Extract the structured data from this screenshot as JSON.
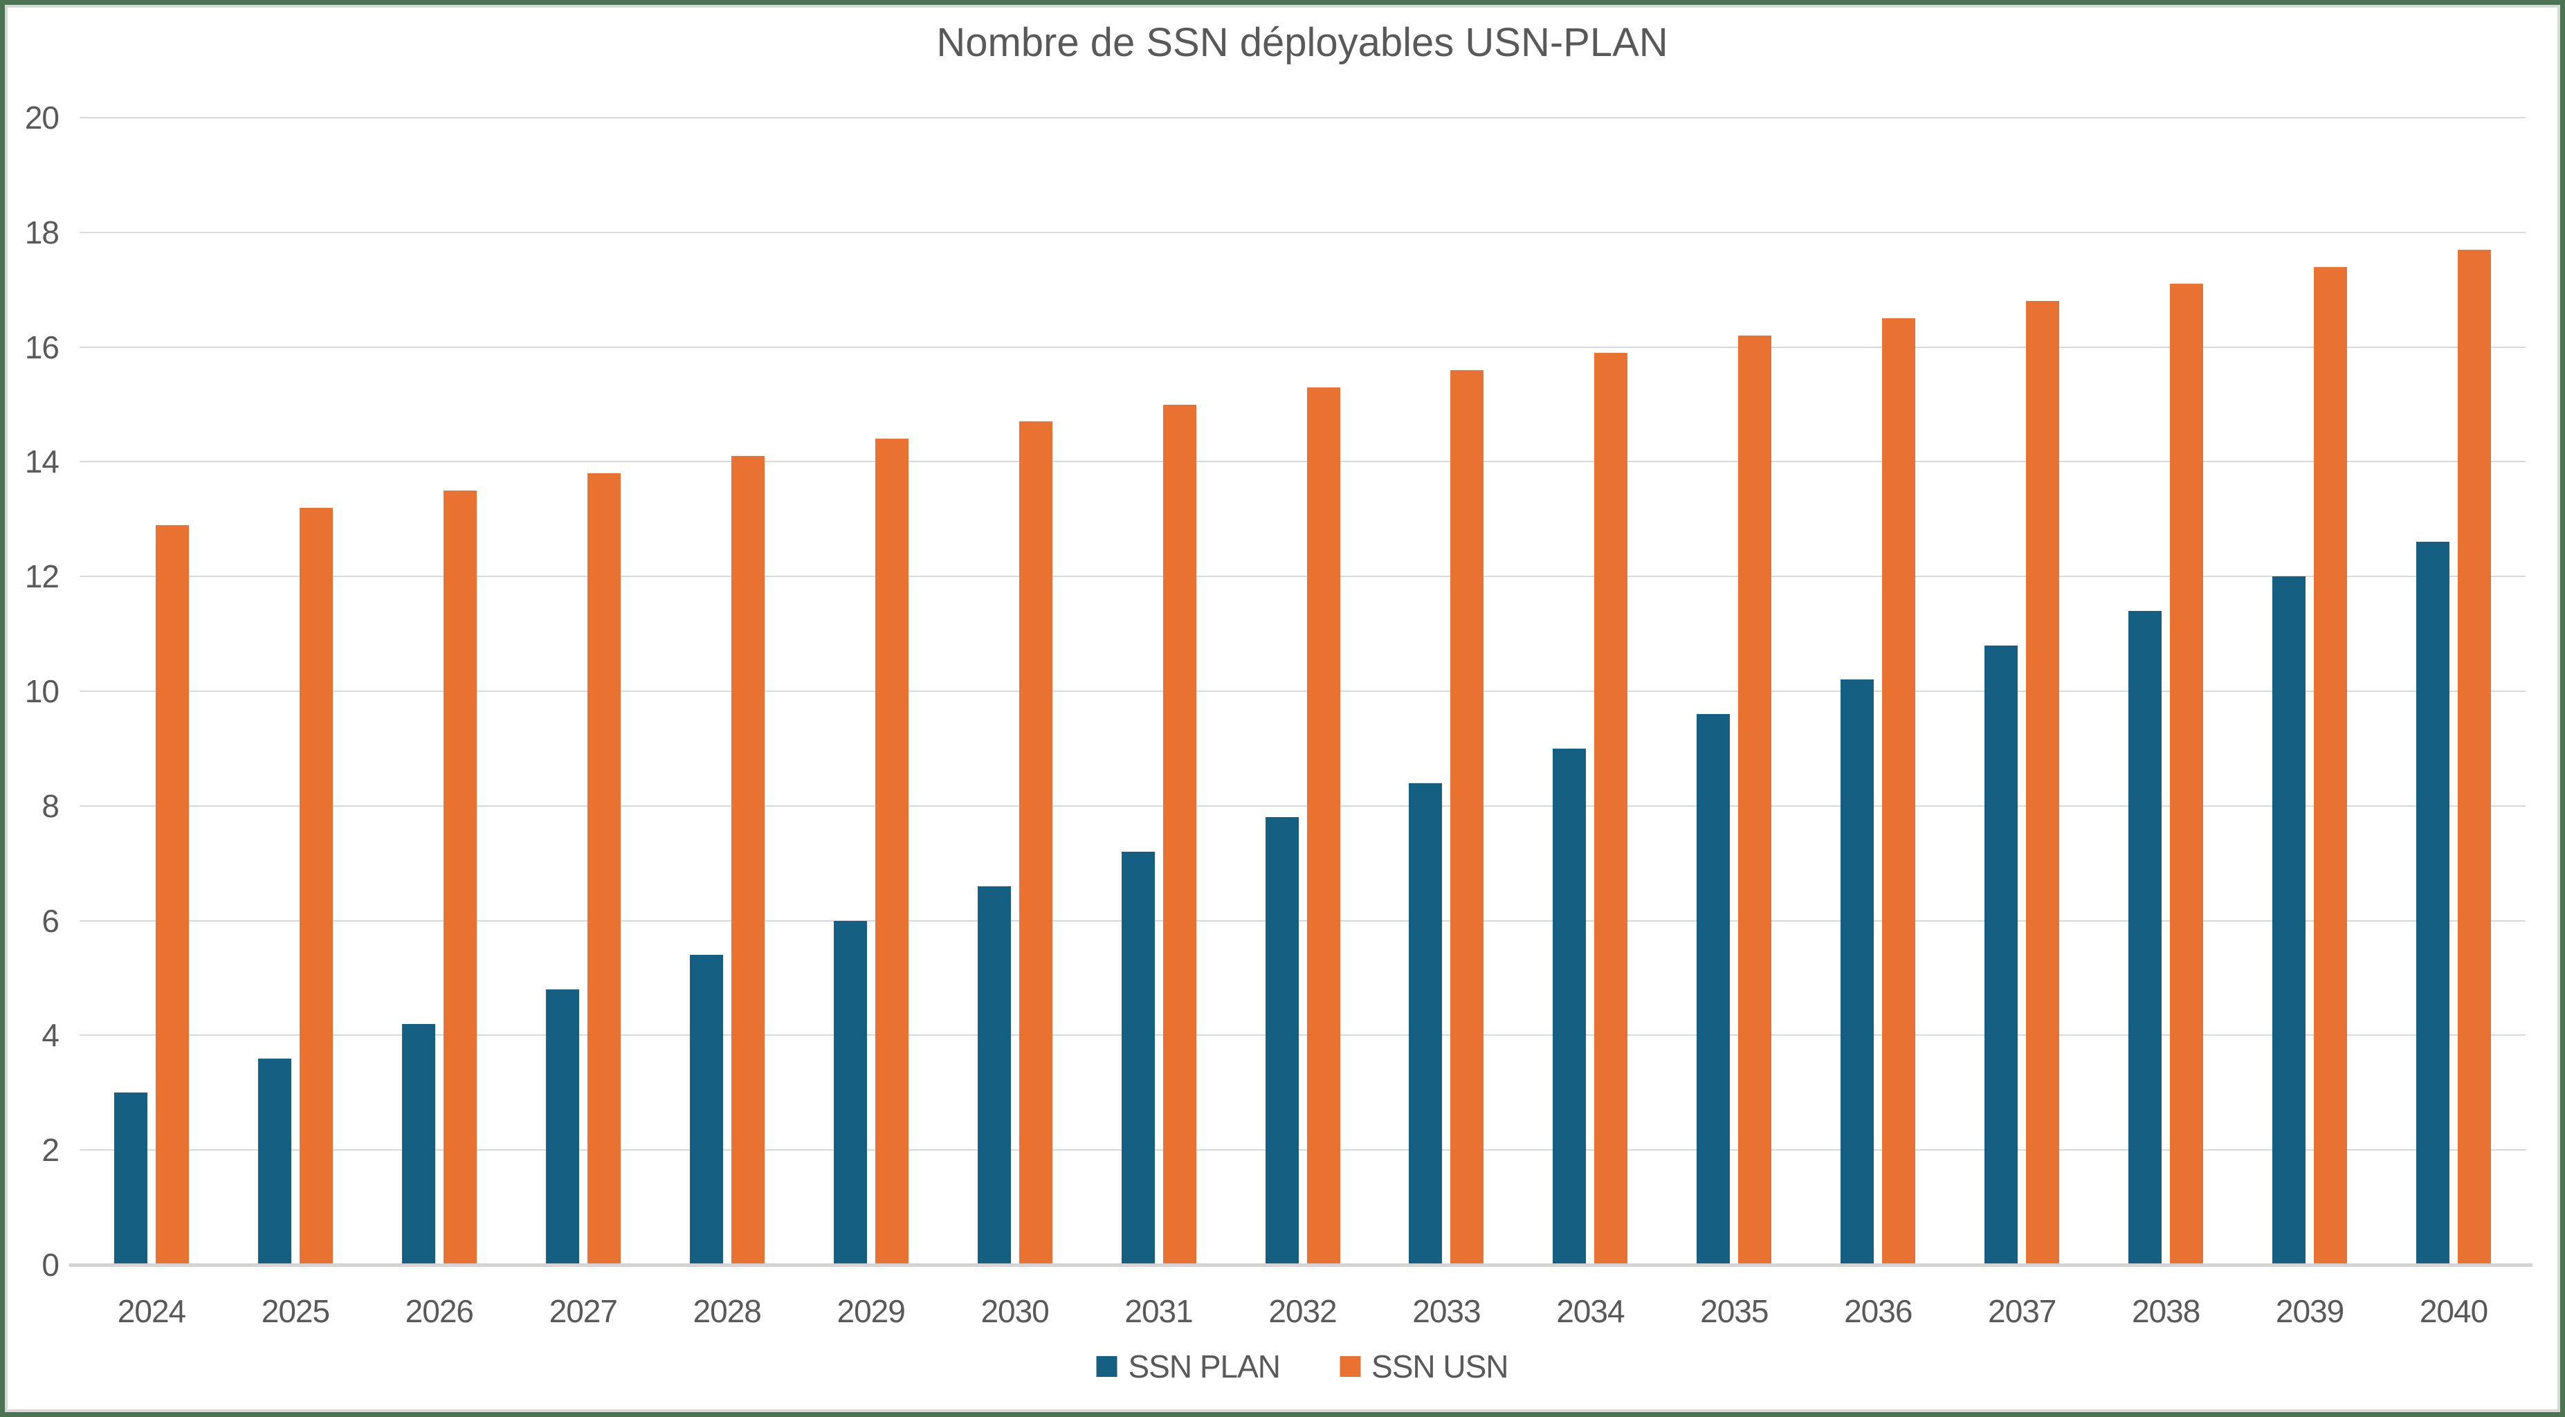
{
  "frame": {
    "outer_border_color": "#4C7354",
    "inner_border_color": "#D8D8D8",
    "background": "#FFFFFF"
  },
  "chart_data": {
    "type": "bar",
    "title": "Nombre de SSN déployables USN-PLAN",
    "xlabel": "",
    "ylabel": "",
    "categories": [
      "2024",
      "2025",
      "2026",
      "2027",
      "2028",
      "2029",
      "2030",
      "2031",
      "2032",
      "2033",
      "2034",
      "2035",
      "2036",
      "2037",
      "2038",
      "2039",
      "2040"
    ],
    "series": [
      {
        "name": "SSN PLAN",
        "color": "#156082",
        "values": [
          3.0,
          3.6,
          4.2,
          4.8,
          5.4,
          6.0,
          6.6,
          7.2,
          7.8,
          8.4,
          9.0,
          9.6,
          10.2,
          10.8,
          11.4,
          12.0,
          12.6
        ]
      },
      {
        "name": "SSN USN",
        "color": "#E97132",
        "values": [
          12.9,
          13.2,
          13.5,
          13.8,
          14.1,
          14.4,
          14.7,
          15.0,
          15.3,
          15.6,
          15.9,
          16.2,
          16.5,
          16.8,
          17.1,
          17.4,
          17.7
        ]
      }
    ],
    "ylim": [
      0,
      20
    ],
    "ytick_step": 2,
    "grid": true,
    "legend_position": "bottom",
    "styles": {
      "text_color": "#595959",
      "gridline_color": "#D9D9D9",
      "axis_line_color": "#D4D4D4"
    }
  }
}
